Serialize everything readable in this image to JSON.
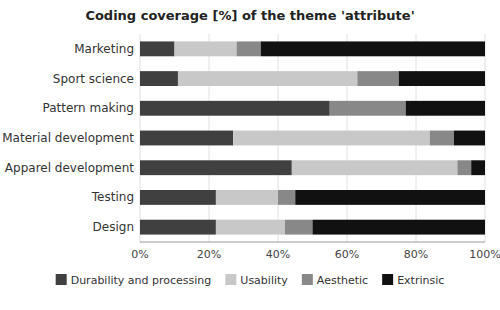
{
  "chart_data": {
    "type": "bar",
    "orientation": "horizontal",
    "stacked": true,
    "title": "Coding coverage [%] of the theme 'attribute'",
    "categories": [
      "Marketing",
      "Sport science",
      "Pattern making",
      "Material development",
      "Apparel development",
      "Testing",
      "Design"
    ],
    "series": [
      {
        "name": "Durability and processing",
        "color": "#404040",
        "values": [
          10,
          11,
          55,
          27,
          44,
          22,
          22
        ]
      },
      {
        "name": "Usability",
        "color": "#c8c8c8",
        "values": [
          18,
          52,
          0,
          57,
          48,
          18,
          20
        ]
      },
      {
        "name": "Aesthetic",
        "color": "#888888",
        "values": [
          7,
          12,
          22,
          7,
          4,
          5,
          8
        ]
      },
      {
        "name": "Extrinsic",
        "color": "#111111",
        "values": [
          65,
          25,
          23,
          9,
          4,
          55,
          50
        ]
      }
    ],
    "xlim": [
      0,
      100
    ],
    "xticks": [
      {
        "value": 0,
        "label": "0%"
      },
      {
        "value": 20,
        "label": "20%"
      },
      {
        "value": 40,
        "label": "40%"
      },
      {
        "value": 60,
        "label": "60%"
      },
      {
        "value": 80,
        "label": "80%"
      },
      {
        "value": 100,
        "label": "100%"
      }
    ],
    "grid": true,
    "legend": "bottom"
  }
}
